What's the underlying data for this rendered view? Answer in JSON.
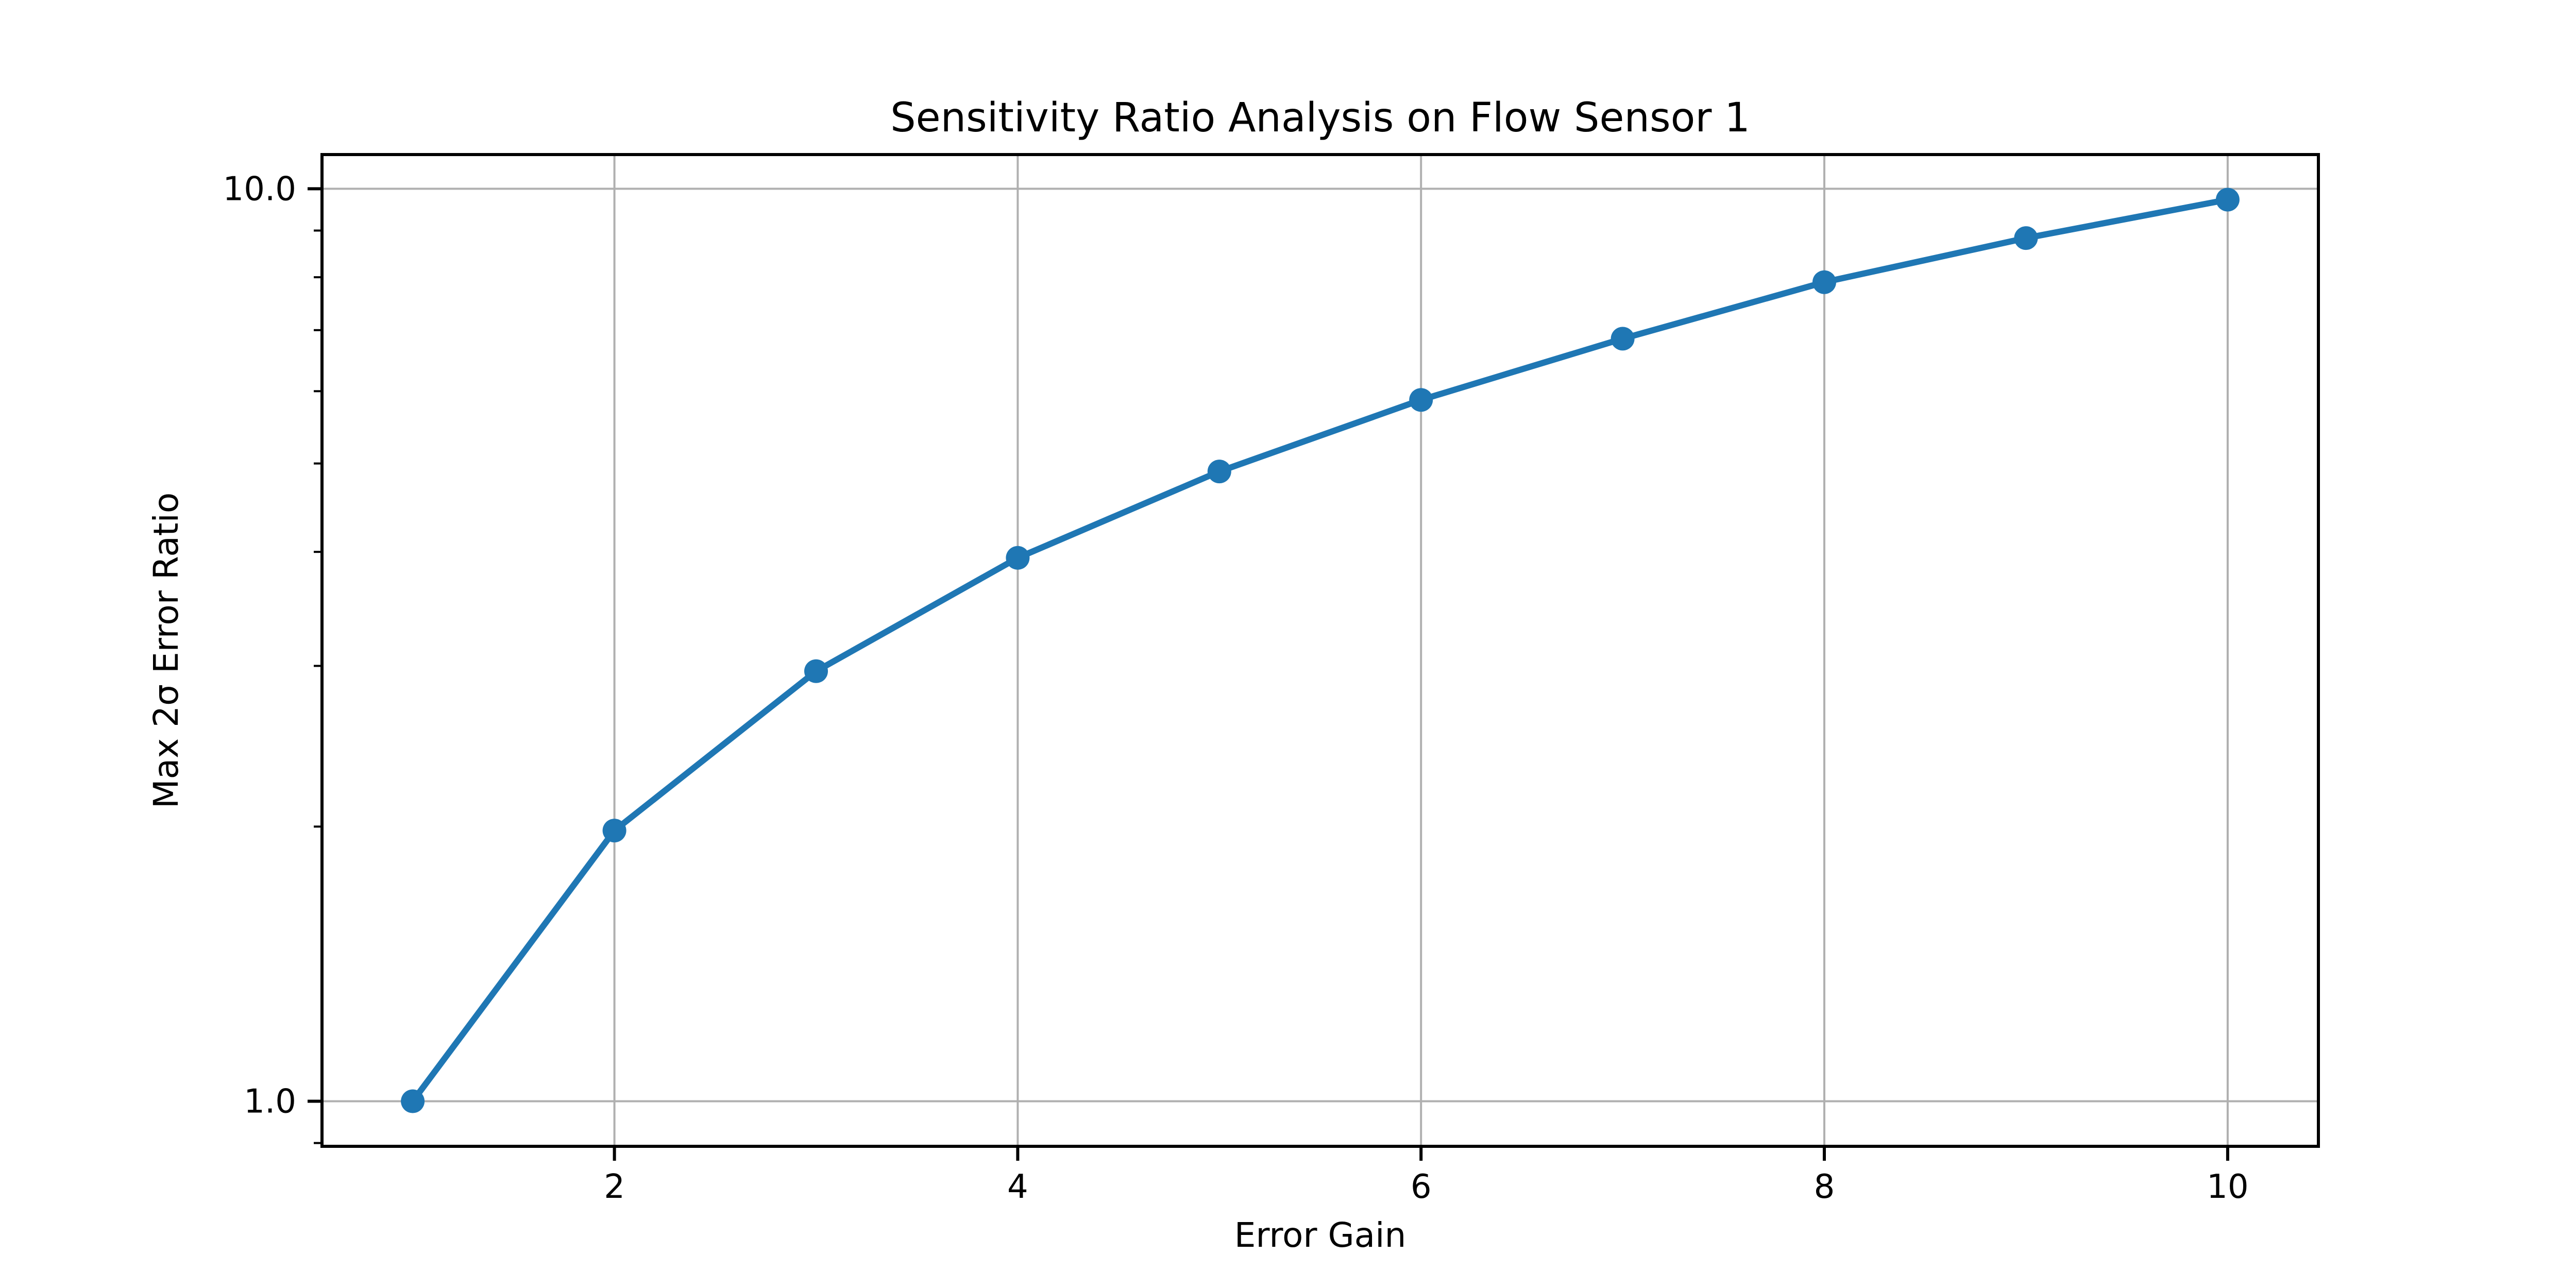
{
  "figure": {
    "background_color": "#ffffff"
  },
  "chart_data": {
    "type": "line",
    "title": "Sensitivity Ratio Analysis on Flow Sensor 1",
    "xlabel": "Error Gain",
    "ylabel": "Max 2σ Error Ratio",
    "y_scale": "log",
    "grid": "major-both",
    "legend": "none",
    "x": [
      1,
      2,
      3,
      4,
      5,
      6,
      7,
      8,
      9,
      10
    ],
    "series": [
      {
        "name": "Max 2σ Error Ratio",
        "values": [
          1.0,
          1.98,
          2.96,
          3.94,
          4.9,
          5.87,
          6.85,
          7.9,
          8.83,
          9.73
        ]
      }
    ],
    "xlim": [
      0.55,
      10.45
    ],
    "ylim": [
      0.8925,
      10.902
    ],
    "x_ticks": {
      "values": [
        2,
        4,
        6,
        8,
        10
      ],
      "labels": [
        "2",
        "4",
        "6",
        "8",
        "10"
      ]
    },
    "y_ticks_major": {
      "values": [
        1.0,
        10.0
      ],
      "labels": [
        "1.0",
        "10.0"
      ]
    },
    "y_ticks_minor": [
      0.9,
      2,
      3,
      4,
      5,
      6,
      7,
      8,
      9
    ],
    "colors": {
      "line": "#1f77b4",
      "marker": "#1f77b4",
      "grid": "#b0b0b0",
      "spine": "#000000",
      "text": "#000000"
    }
  }
}
